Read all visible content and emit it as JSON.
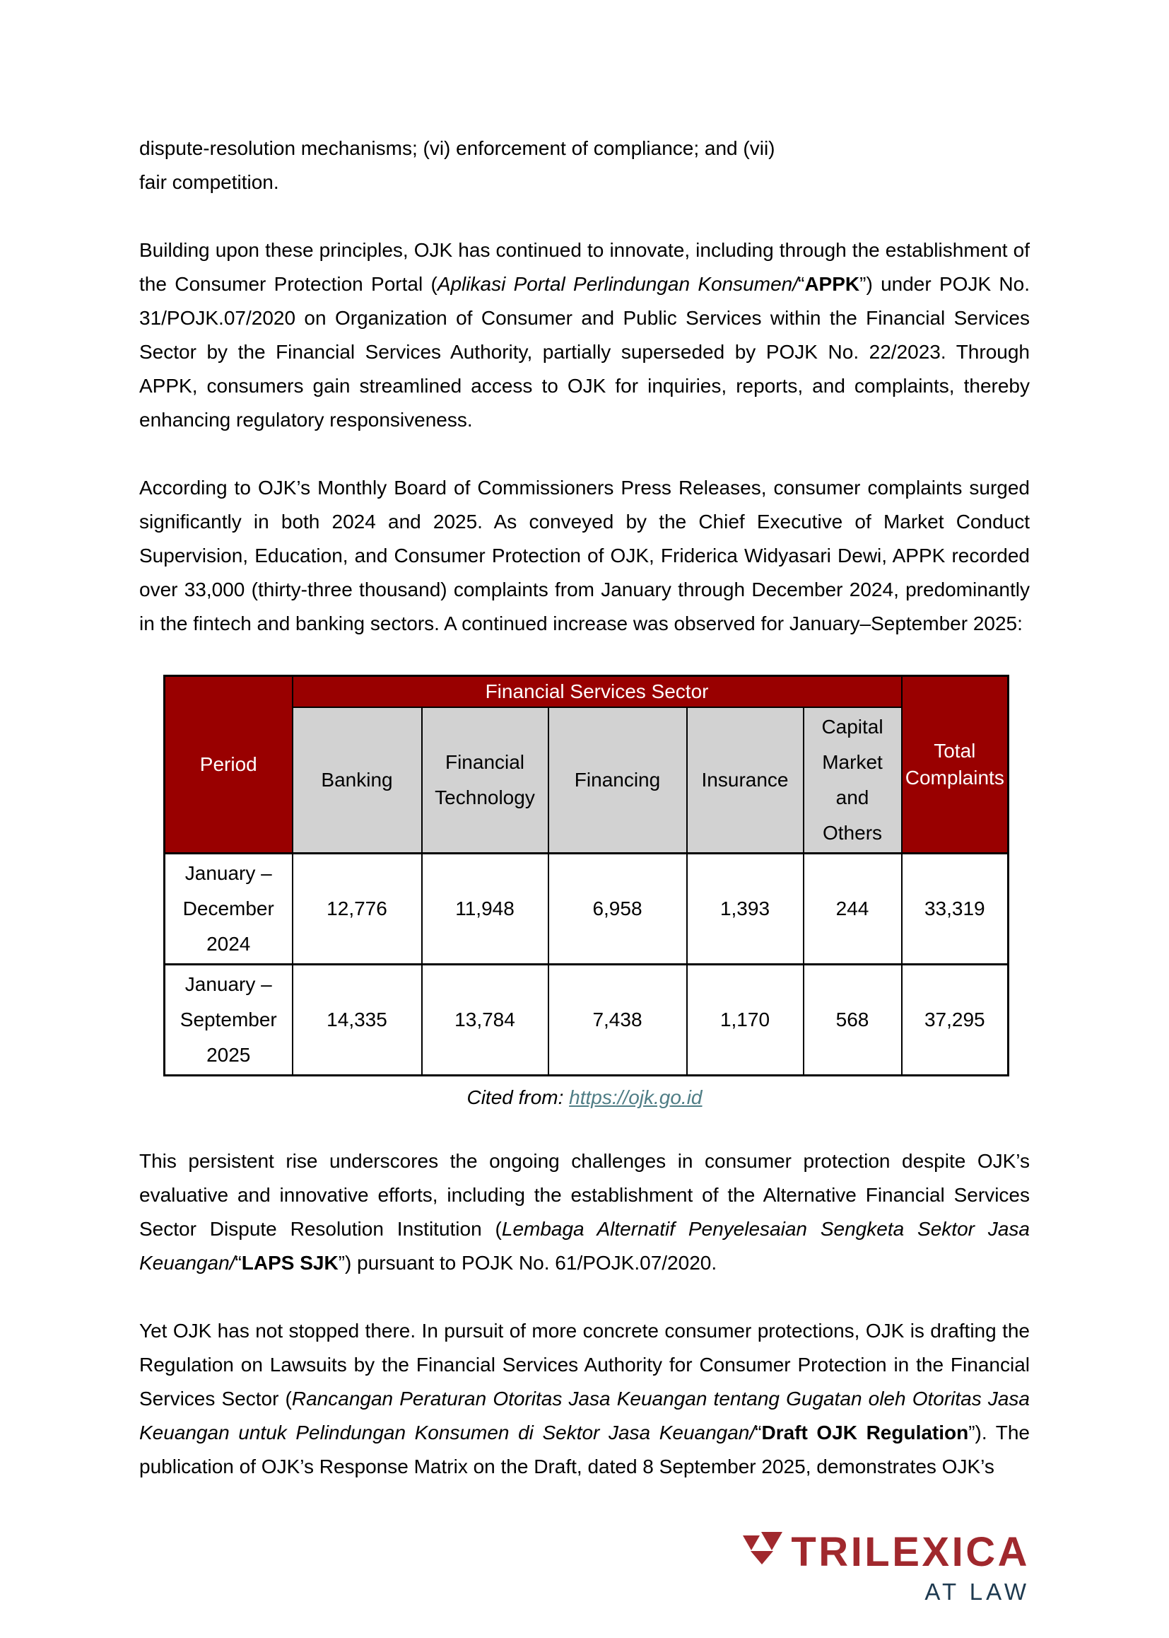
{
  "paragraphs": {
    "p1_line1": "dispute-resolution mechanisms; (vi) enforcement of compliance; and (vii)",
    "p1_line2": "fair competition.",
    "p2": [
      {
        "text": "Building upon these principles, OJK has continued to innovate, including through the establishment of the Consumer Protection Portal ("
      },
      {
        "style": "italic",
        "text": "Aplikasi Portal Perlindungan Konsumen/"
      },
      {
        "text": "“"
      },
      {
        "style": "bold",
        "text": "APPK"
      },
      {
        "text": "”) under POJK No. 31/POJK.07/2020 on Organization of Consumer and Public Services within the Financial Services Sector by the Financial Services Authority, partially superseded by POJK No. 22/2023. Through APPK, consumers gain streamlined access to OJK for inquiries, reports, and complaints, thereby enhancing regulatory responsiveness."
      }
    ],
    "p3": [
      {
        "text": "According to OJK’s Monthly Board of Commissioners Press Releases, consumer complaints surged significantly in both 2024 and 2025. As conveyed by the Chief Executive of Market Conduct Supervision, Education, and Consumer Protection of OJK, Friderica Widyasari Dewi, APPK recorded over 33,000 (thirty-three thousand) complaints from January through December 2024, predominantly in the fintech and banking sectors. A continued increase was observed for January–September 2025:"
      }
    ],
    "p4": [
      {
        "text": "This persistent rise underscores the ongoing challenges in consumer protection despite OJK’s evaluative and innovative efforts, including the establishment of the Alternative Financial Services Sector Dispute Resolution Institution ("
      },
      {
        "style": "italic",
        "text": "Lembaga Alternatif Penyelesaian Sengketa Sektor Jasa Keuangan/"
      },
      {
        "text": "“"
      },
      {
        "style": "bold",
        "text": "LAPS SJK"
      },
      {
        "text": "”) pursuant to POJK No. 61/POJK.07/2020."
      }
    ],
    "p5": [
      {
        "text": "Yet OJK has not stopped there. In pursuit of more concrete consumer protections, OJK is drafting the Regulation on Lawsuits by the Financial Services Authority for Consumer Protection in the Financial Services Sector ("
      },
      {
        "style": "italic",
        "text": "Rancangan Peraturan Otoritas Jasa Keuangan tentang Gugatan oleh Otoritas Jasa Keuangan untuk Pelindungan Konsumen di Sektor Jasa Keuangan/"
      },
      {
        "text": "“"
      },
      {
        "style": "bold",
        "text": "Draft OJK Regulation"
      },
      {
        "text": "”). The publication of OJK’s Response Matrix on the Draft, dated 8 September 2025, demonstrates OJK’s"
      }
    ]
  },
  "table": {
    "sector_header": "Financial Services Sector",
    "period_header": "Period",
    "total_header": "Total Complaints",
    "columns": [
      "Banking",
      "Financial Technology",
      "Financing",
      "Insurance",
      "Capital Market and Others"
    ],
    "rows": [
      {
        "period": "January – December 2024",
        "cells": [
          "12,776",
          "11,948",
          "6,958",
          "1,393",
          "244",
          "33,319"
        ]
      },
      {
        "period": "January – September 2025",
        "cells": [
          "14,335",
          "13,784",
          "7,438",
          "1,170",
          "568",
          "37,295"
        ]
      }
    ],
    "colors": {
      "header_red": "#990000",
      "header_gray": "#D2D2D2",
      "border": "#000000"
    }
  },
  "caption": {
    "prefix": "Cited from: ",
    "link": "https://ojk.go.id",
    "link_color": "#4F7D85"
  },
  "logo": {
    "name": "TRILEXICA",
    "tagline": "AT LAW",
    "red": "#A0282D",
    "navy": "#1E3A50"
  }
}
